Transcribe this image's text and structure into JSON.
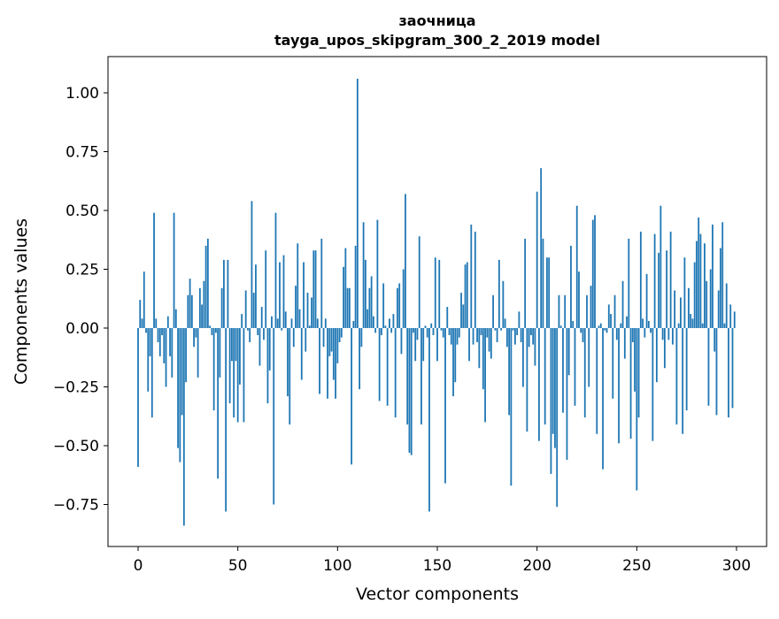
{
  "chart_data": {
    "type": "bar",
    "title": "заочница",
    "subtitle": "tayga_upos_skipgram_300_2_2019 model",
    "xlabel": "Vector components",
    "ylabel": "Components values",
    "xlim": [
      -15,
      315
    ],
    "ylim": [
      -0.93,
      1.15
    ],
    "xticks": [
      0,
      50,
      100,
      150,
      200,
      250,
      300
    ],
    "yticks": [
      -0.75,
      -0.5,
      -0.25,
      0.0,
      0.25,
      0.5,
      0.75,
      1.0
    ],
    "ytick_labels": [
      "−0.75",
      "−0.50",
      "−0.25",
      "0.00",
      "0.25",
      "0.50",
      "0.75",
      "1.00"
    ],
    "grid": false,
    "color": "#1f77b4",
    "values": [
      -0.59,
      0.12,
      0.04,
      0.24,
      -0.02,
      -0.27,
      -0.12,
      -0.38,
      0.49,
      0.04,
      -0.06,
      -0.12,
      -0.03,
      -0.15,
      -0.25,
      0.05,
      -0.12,
      -0.21,
      0.49,
      0.08,
      -0.51,
      -0.57,
      -0.37,
      -0.84,
      -0.23,
      0.14,
      0.21,
      0.14,
      -0.08,
      -0.04,
      -0.21,
      0.17,
      0.1,
      0.2,
      0.35,
      0.38,
      0.01,
      -0.03,
      -0.35,
      -0.02,
      -0.64,
      -0.21,
      0.17,
      0.29,
      -0.78,
      0.29,
      -0.32,
      -0.14,
      -0.38,
      -0.14,
      -0.4,
      -0.24,
      0.06,
      -0.4,
      0.16,
      -0.01,
      -0.06,
      0.54,
      0.15,
      0.27,
      -0.03,
      -0.16,
      0.09,
      -0.05,
      0.33,
      -0.32,
      -0.18,
      0.05,
      -0.75,
      0.49,
      0.04,
      0.28,
      -0.01,
      0.31,
      0.07,
      -0.29,
      -0.41,
      0.04,
      -0.08,
      0.18,
      0.36,
      0.08,
      -0.22,
      0.28,
      -0.1,
      0.15,
      0.01,
      0.13,
      0.33,
      0.33,
      0.04,
      -0.28,
      0.38,
      -0.08,
      0.04,
      -0.3,
      -0.12,
      -0.1,
      -0.22,
      -0.3,
      -0.15,
      -0.06,
      -0.04,
      0.26,
      0.34,
      0.17,
      0.17,
      -0.58,
      0.03,
      0.35,
      1.06,
      -0.26,
      -0.08,
      0.45,
      0.29,
      0.08,
      0.17,
      0.22,
      0.05,
      -0.02,
      0.46,
      -0.31,
      -0.03,
      0.19,
      0.01,
      -0.33,
      0.04,
      -0.02,
      0.06,
      -0.38,
      0.17,
      0.19,
      -0.11,
      0.25,
      0.57,
      -0.41,
      -0.53,
      -0.54,
      -0.02,
      -0.14,
      -0.05,
      0.39,
      -0.41,
      -0.14,
      0.01,
      -0.04,
      -0.78,
      0.02,
      -0.03,
      0.3,
      -0.14,
      0.29,
      -0.01,
      -0.04,
      -0.66,
      0.09,
      -0.03,
      -0.07,
      -0.29,
      -0.23,
      -0.07,
      -0.04,
      0.15,
      0.1,
      0.27,
      0.28,
      -0.14,
      0.44,
      -0.07,
      0.41,
      -0.06,
      -0.17,
      -0.03,
      -0.26,
      -0.4,
      -0.04,
      -0.1,
      -0.13,
      0.14,
      -0.01,
      -0.06,
      0.29,
      -0.01,
      0.2,
      0.04,
      -0.08,
      -0.37,
      -0.67,
      -0.01,
      -0.07,
      -0.03,
      0.07,
      -0.06,
      -0.25,
      0.38,
      -0.44,
      -0.08,
      -0.03,
      -0.07,
      -0.16,
      0.58,
      -0.48,
      0.68,
      0.38,
      -0.41,
      0.3,
      0.3,
      -0.62,
      -0.45,
      -0.51,
      -0.76,
      0.14,
      0.01,
      -0.36,
      0.14,
      -0.56,
      -0.2,
      0.35,
      0.03,
      -0.33,
      0.52,
      0.24,
      -0.02,
      -0.06,
      -0.38,
      0.14,
      -0.25,
      0.18,
      0.46,
      0.48,
      -0.45,
      0.01,
      0.02,
      -0.6,
      -0.01,
      -0.02,
      0.1,
      0.06,
      -0.3,
      0.14,
      -0.05,
      -0.49,
      0.02,
      0.2,
      -0.13,
      0.05,
      0.38,
      -0.47,
      -0.06,
      -0.27,
      -0.69,
      -0.38,
      0.41,
      0.04,
      -0.04,
      0.23,
      0.03,
      -0.02,
      -0.48,
      0.4,
      -0.23,
      0.32,
      0.52,
      -0.05,
      -0.17,
      0.33,
      -0.05,
      0.41,
      -0.07,
      0.16,
      -0.41,
      0.02,
      0.13,
      -0.45,
      0.3,
      -0.35,
      0.17,
      0.06,
      0.04,
      0.28,
      0.37,
      0.47,
      0.4,
      0.02,
      0.36,
      0.2,
      -0.33,
      0.25,
      0.44,
      -0.1,
      -0.37,
      0.16,
      0.34,
      0.45,
      0.02,
      0.19,
      -0.38,
      0.1,
      -0.34,
      0.07
    ]
  }
}
